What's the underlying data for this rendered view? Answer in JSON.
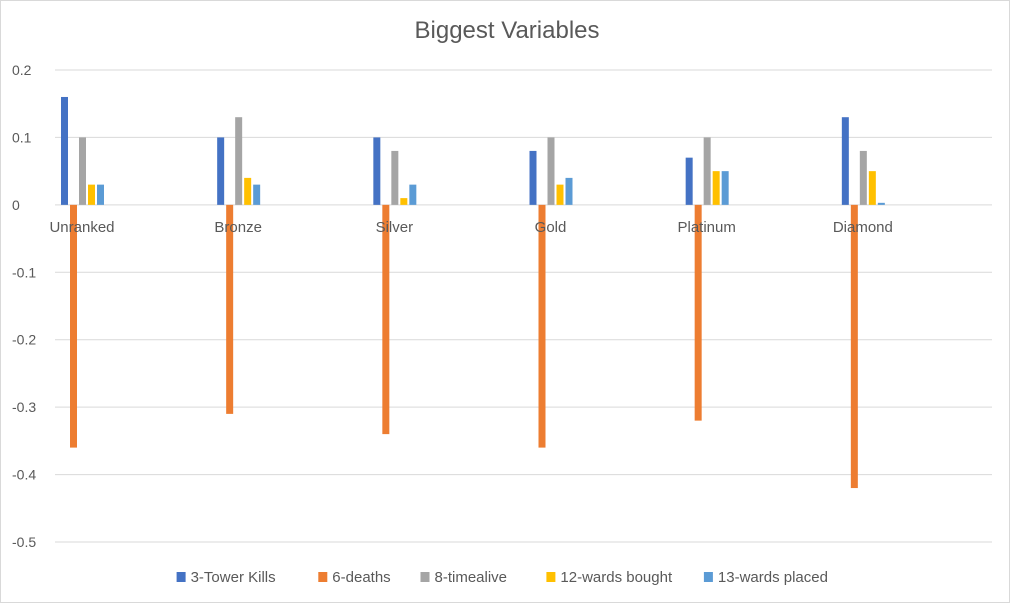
{
  "chart_data": {
    "type": "bar",
    "title": "Biggest Variables",
    "xlabel": "",
    "ylabel": "",
    "categories": [
      "Unranked",
      "Bronze",
      "Silver",
      "Gold",
      "Platinum",
      "Diamond"
    ],
    "ylim": [
      -0.5,
      0.2
    ],
    "yticks": [
      0.2,
      0.1,
      0,
      -0.1,
      -0.2,
      -0.3,
      -0.4,
      -0.5
    ],
    "ytick_labels": [
      "0.2",
      "0.1",
      "0",
      "-0.1",
      "-0.2",
      "-0.3",
      "-0.4",
      "-0.5"
    ],
    "grid": true,
    "legend_position": "bottom",
    "series": [
      {
        "name": "3-Tower Kills",
        "color": "#4472c4",
        "values": [
          0.16,
          0.1,
          0.1,
          0.08,
          0.07,
          0.13
        ]
      },
      {
        "name": "6-deaths",
        "color": "#ed7d31",
        "values": [
          -0.36,
          -0.31,
          -0.34,
          -0.36,
          -0.32,
          -0.42
        ]
      },
      {
        "name": "8-timealive",
        "color": "#a5a5a5",
        "values": [
          0.1,
          0.13,
          0.08,
          0.1,
          0.1,
          0.08
        ]
      },
      {
        "name": "12-wards bought",
        "color": "#ffc000",
        "values": [
          0.03,
          0.04,
          0.01,
          0.03,
          0.05,
          0.05
        ]
      },
      {
        "name": "13-wards placed",
        "color": "#5b9bd5",
        "values": [
          0.03,
          0.03,
          0.03,
          0.04,
          0.05,
          0.003
        ]
      }
    ]
  }
}
